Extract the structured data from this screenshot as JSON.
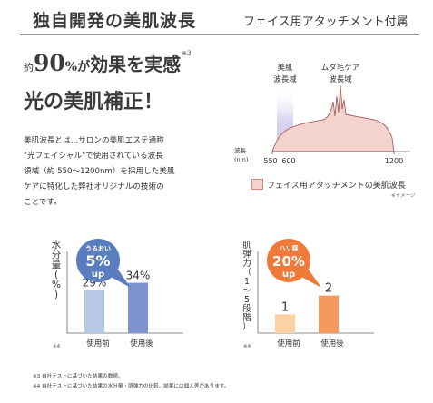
{
  "header": {
    "title": "独自開発の美肌波長",
    "subtitle": "フェイス用アタッチメント付属"
  },
  "headline": {
    "prefix": "約",
    "percent": "90",
    "percent_unit": "%",
    "particle": "が",
    "main": "効果を実感",
    "note": "※3",
    "line2": "光の美肌補正！"
  },
  "description": [
    "美肌波長とは…サロンの美肌エステ通称",
    "\"光フェイシャル\"で使用されている波長",
    "領域（約 550～1200nm）を採用した美肌",
    "ケアに特化した弊社オリジナルの技術の",
    "ことです。"
  ],
  "spectrum": {
    "label_beauty_line1": "美肌",
    "label_beauty_line2": "波長域",
    "label_hair_line1": "ムダ毛ケア",
    "label_hair_line2": "波長域",
    "axis_label_line1": "波長",
    "axis_label_line2": "(nm)",
    "ticks": [
      "550",
      "600",
      "1200"
    ],
    "legend": "フェイス用アタッチメントの美肌波長",
    "legend_note": "※イメージ",
    "colors": {
      "fill": "#f4d3cd",
      "line": "#a06060",
      "band": "#d8d4ee"
    }
  },
  "chart_data": [
    {
      "type": "bar",
      "ylabel": "水分量(%)",
      "categories": [
        "使用前",
        "使用後"
      ],
      "values": [
        29,
        34
      ],
      "labels": [
        "29%",
        "34%"
      ],
      "note": "※4",
      "badge": {
        "top": "うるおい",
        "value": "5%",
        "bottom": "up",
        "color": "#5a7dbf"
      },
      "colors": [
        "#b8c8e8",
        "#7d94d0"
      ]
    },
    {
      "type": "bar",
      "ylabel": "肌弾力（1〜5段階）",
      "categories": [
        "使用前",
        "使用後"
      ],
      "values": [
        1,
        2
      ],
      "labels": [
        "1",
        "2"
      ],
      "note": "※4",
      "badge": {
        "top": "ハリ感",
        "value": "20%",
        "bottom": "up",
        "color": "#f07a3a"
      },
      "colors": [
        "#fcd1a4",
        "#f59a5c"
      ]
    }
  ],
  "footnotes": [
    "※3 自社テストに基づいた結果の数値。",
    "※4 自社テストに基づいた結果の水分量・肌弾力の比較。結果には個人差があります。"
  ]
}
